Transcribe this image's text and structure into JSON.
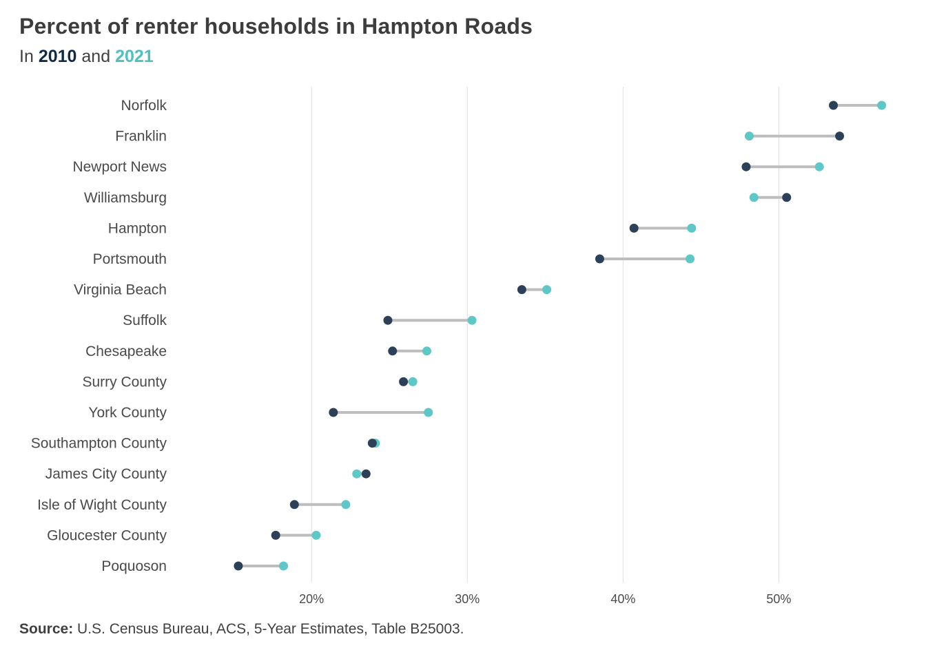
{
  "title": "Percent of renter households in Hampton Roads",
  "subtitle": {
    "prefix": "In",
    "year1": "2010",
    "middle": "and",
    "year2": "2021"
  },
  "colors": {
    "y2010": "#2d4059",
    "y2021": "#5ec8c8",
    "connector": "#bdbdbd",
    "grid": "#dedede",
    "year1_text": "#0f2a48",
    "year2_text": "#4fbfbf"
  },
  "source": {
    "label": "Source:",
    "text": "U.S. Census Bureau,  ACS, 5-Year Estimates,  Table B25003."
  },
  "chart_data": {
    "type": "dumbbell",
    "xlim": [
      11.5,
      57.5
    ],
    "x_ticks": [
      20,
      30,
      40,
      50
    ],
    "x_tick_labels": [
      "20%",
      "30%",
      "40%",
      "50%"
    ],
    "grid": "vertical",
    "categories": [
      "Norfolk",
      "Franklin",
      "Newport News",
      "Williamsburg",
      "Hampton",
      "Portsmouth",
      "Virginia Beach",
      "Suffolk",
      "Chesapeake",
      "Surry County",
      "York County",
      "Southampton County",
      "James City County",
      "Isle of Wight County",
      "Gloucester County",
      "Poquoson"
    ],
    "series": [
      {
        "name": "2010",
        "values": [
          53.5,
          53.9,
          47.9,
          50.5,
          40.7,
          38.5,
          33.5,
          24.9,
          25.2,
          25.9,
          21.4,
          23.9,
          23.5,
          18.9,
          17.7,
          15.3
        ]
      },
      {
        "name": "2021",
        "values": [
          56.6,
          48.1,
          52.6,
          48.4,
          44.4,
          44.3,
          35.1,
          30.3,
          27.4,
          26.5,
          27.5,
          24.1,
          22.9,
          22.2,
          20.3,
          18.2
        ]
      }
    ]
  }
}
